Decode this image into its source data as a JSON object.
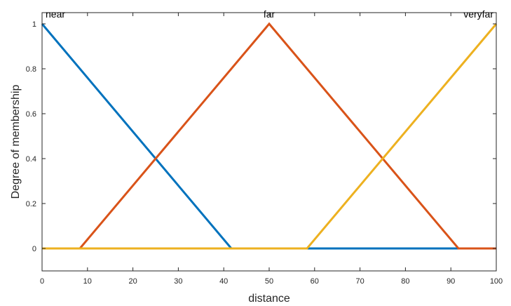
{
  "chart_data": {
    "type": "line",
    "title": "",
    "xlabel": "distance",
    "ylabel": "Degree of membership",
    "xlim": [
      0,
      100
    ],
    "ylim": [
      -0.1,
      1.05
    ],
    "x_ticks": [
      "0",
      "10",
      "20",
      "30",
      "40",
      "50",
      "60",
      "70",
      "80",
      "90",
      "100"
    ],
    "y_ticks": [
      "0",
      "0.2",
      "0.4",
      "0.6",
      "0.8",
      "1"
    ],
    "grid": false,
    "legend": "none",
    "series": [
      {
        "name": "near",
        "color": "#0072BD",
        "points": [
          [
            0,
            1
          ],
          [
            41.67,
            0
          ],
          [
            100,
            0
          ]
        ]
      },
      {
        "name": "far",
        "color": "#D95319",
        "points": [
          [
            0,
            0
          ],
          [
            8.33,
            0
          ],
          [
            50,
            1
          ],
          [
            91.67,
            0
          ],
          [
            100,
            0
          ]
        ]
      },
      {
        "name": "veryfar",
        "color": "#EDB120",
        "points": [
          [
            0,
            0
          ],
          [
            58.33,
            0
          ],
          [
            100,
            1
          ]
        ]
      }
    ]
  }
}
